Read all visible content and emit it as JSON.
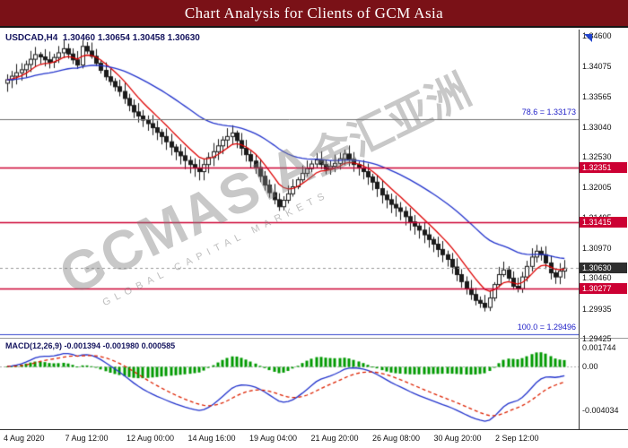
{
  "window": {
    "title": "Chart Analysis for Clients of GCM Asia",
    "title_bg": "#7a1117"
  },
  "chart": {
    "header": {
      "symbol": "USDCAD,H4",
      "quotes": "1.30460 1.30654 1.30458 1.30630"
    },
    "watermark": {
      "main": "GCMASIA",
      "cjk": "金汇亚洲",
      "sub": "GLOBAL CAPITAL MARKETS"
    }
  },
  "levels": [
    {
      "label": "1.32351",
      "value": 1.32351,
      "type": "resistance",
      "color": "#cc0033"
    },
    {
      "label": "1.31415",
      "value": 1.31415,
      "type": "resistance",
      "color": "#cc0033"
    },
    {
      "label": "1.30630",
      "value": 1.3063,
      "type": "current-price",
      "color": "#2f2f2f"
    },
    {
      "label": "1.30277",
      "value": 1.30277,
      "type": "support",
      "color": "#cc0033"
    }
  ],
  "fib": [
    {
      "label": "78.6 = 1.33173",
      "value": 1.33173
    },
    {
      "label": "100.0 = 1.29496",
      "value": 1.29496
    }
  ],
  "macd": {
    "header": "MACD(12,26,9) -0.001394 -0.001980 0.000585",
    "axis": [
      {
        "label": "0.001744",
        "value": 0.001744
      },
      {
        "label": "0.00",
        "value": 0
      },
      {
        "label": "-0.004034",
        "value": -0.004034
      }
    ]
  },
  "time_axis": [
    "4 Aug 2020",
    "7 Aug 12:00",
    "12 Aug 00:00",
    "14 Aug 16:00",
    "19 Aug 04:00",
    "21 Aug 20:00",
    "26 Aug 08:00",
    "30 Aug 20:00",
    "2 Sep 12:00"
  ],
  "chart_data": {
    "type": "candlestick",
    "title": "USDCAD H4",
    "y_axis": {
      "min": 1.29425,
      "max": 1.346,
      "ticks": [
        "1.34600",
        "1.34075",
        "1.33565",
        "1.33040",
        "1.32530",
        "1.32005",
        "1.31495",
        "1.30970",
        "1.30460",
        "1.29935",
        "1.29425"
      ]
    },
    "close": [
      1.3385,
      1.3391,
      1.3397,
      1.3402,
      1.3411,
      1.342,
      1.3428,
      1.3424,
      1.3419,
      1.3415,
      1.3423,
      1.3431,
      1.3438,
      1.3429,
      1.3419,
      1.341,
      1.3442,
      1.3434,
      1.3425,
      1.3413,
      1.3401,
      1.339,
      1.3382,
      1.3373,
      1.3365,
      1.3353,
      1.3341,
      1.333,
      1.3323,
      1.3316,
      1.331,
      1.3303,
      1.3295,
      1.3288,
      1.3279,
      1.327,
      1.3262,
      1.3255,
      1.3247,
      1.324,
      1.3234,
      1.3228,
      1.324,
      1.3252,
      1.3262,
      1.3272,
      1.3282,
      1.3288,
      1.3294,
      1.3281,
      1.3268,
      1.3257,
      1.3246,
      1.3235,
      1.322,
      1.3205,
      1.3192,
      1.318,
      1.3168,
      1.3179,
      1.319,
      1.3202,
      1.3214,
      1.3225,
      1.3233,
      1.3241,
      1.3248,
      1.324,
      1.3232,
      1.3237,
      1.3242,
      1.325,
      1.3258,
      1.3249,
      1.324,
      1.3234,
      1.3228,
      1.3219,
      1.321,
      1.3199,
      1.3188,
      1.318,
      1.3172,
      1.3166,
      1.316,
      1.3151,
      1.3142,
      1.3135,
      1.3128,
      1.312,
      1.3112,
      1.3104,
      1.3095,
      1.3086,
      1.3078,
      1.3065,
      1.3052,
      1.304,
      1.3028,
      1.3018,
      1.3008,
      1.3003,
      1.2996,
      1.3012,
      1.3035,
      1.3052,
      1.306,
      1.3046,
      1.3032,
      1.3028,
      1.3048,
      1.3066,
      1.3082,
      1.3092,
      1.3086,
      1.3072,
      1.3055,
      1.3048,
      1.3058,
      1.3063
    ],
    "candle_colors": {
      "up_fill": "#ffffff",
      "down_fill": "#1a1a1a",
      "outline": "#1a1a1a"
    },
    "overlays": [
      {
        "name": "MA fast",
        "type": "ema",
        "period": 8,
        "color": "#dd0000"
      },
      {
        "name": "MA slow",
        "type": "ema",
        "period": 34,
        "color": "#2233cc"
      }
    ],
    "hlines": [
      {
        "value": 1.33173,
        "color": "#707070",
        "dash": [],
        "width": 1,
        "name": "fib-78.6"
      },
      {
        "value": 1.32351,
        "color": "#cc0033",
        "dash": [],
        "width": 1.4,
        "name": "resistance-1"
      },
      {
        "value": 1.31415,
        "color": "#cc0033",
        "dash": [],
        "width": 1.4,
        "name": "resistance-2"
      },
      {
        "value": 1.3063,
        "color": "#999999",
        "dash": [
          3,
          3
        ],
        "width": 1,
        "name": "current-price"
      },
      {
        "value": 1.30277,
        "color": "#cc0033",
        "dash": [],
        "width": 1.4,
        "name": "support-1"
      },
      {
        "value": 1.29496,
        "color": "#3344cc",
        "dash": [],
        "width": 1.2,
        "name": "fib-100.0"
      }
    ],
    "indicator": {
      "name": "MACD",
      "fast": 12,
      "slow": 26,
      "signal": 9,
      "last_values": {
        "macd": -0.001394,
        "signal": -0.00198,
        "histogram": 0.000585
      },
      "histogram_color": "#009900",
      "macd_color": "#2233cc",
      "signal_color": "#dd2200",
      "y_ticks": [
        0.001744,
        0,
        -0.004034
      ]
    },
    "grid": false,
    "legend": false
  }
}
